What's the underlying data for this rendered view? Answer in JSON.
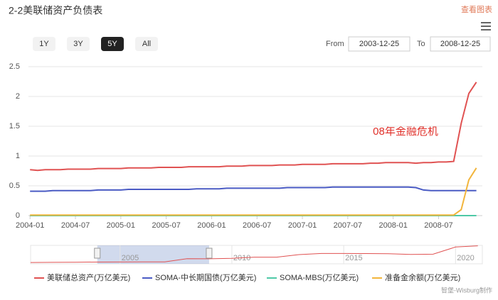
{
  "header": {
    "title": "2-2美联储资产负债表",
    "view_chart": "查看图表"
  },
  "range_selector": {
    "buttons": [
      "1Y",
      "3Y",
      "5Y",
      "All"
    ],
    "selected": "5Y",
    "from_label": "From",
    "from": "2003-12-25",
    "to_label": "To",
    "to": "2008-12-25"
  },
  "chart_data": {
    "type": "line",
    "x": [
      "2004-01",
      "2004-02",
      "2004-03",
      "2004-04",
      "2004-05",
      "2004-06",
      "2004-07",
      "2004-08",
      "2004-09",
      "2004-10",
      "2004-11",
      "2004-12",
      "2005-01",
      "2005-02",
      "2005-03",
      "2005-04",
      "2005-05",
      "2005-06",
      "2005-07",
      "2005-08",
      "2005-09",
      "2005-10",
      "2005-11",
      "2005-12",
      "2006-01",
      "2006-02",
      "2006-03",
      "2006-04",
      "2006-05",
      "2006-06",
      "2006-07",
      "2006-08",
      "2006-09",
      "2006-10",
      "2006-11",
      "2006-12",
      "2007-01",
      "2007-02",
      "2007-03",
      "2007-04",
      "2007-05",
      "2007-06",
      "2007-07",
      "2007-08",
      "2007-09",
      "2007-10",
      "2007-11",
      "2007-12",
      "2008-01",
      "2008-02",
      "2008-03",
      "2008-04",
      "2008-05",
      "2008-06",
      "2008-07",
      "2008-08",
      "2008-09",
      "2008-10",
      "2008-11",
      "2008-12"
    ],
    "xlim": [
      "2003-12-25",
      "2008-12-25"
    ],
    "xticks": [
      "2004-01",
      "2004-07",
      "2005-01",
      "2005-07",
      "2006-01",
      "2006-07",
      "2007-01",
      "2007-07",
      "2008-01",
      "2008-07"
    ],
    "ylim": [
      0,
      2.5
    ],
    "yticks": [
      0,
      0.5,
      1,
      1.5,
      2,
      2.5
    ],
    "grid": true,
    "annotation": "08年金融危机",
    "series": [
      {
        "name": "美联储总资产(万亿美元)",
        "color": "#e05252",
        "values": [
          0.77,
          0.76,
          0.77,
          0.77,
          0.77,
          0.78,
          0.78,
          0.78,
          0.78,
          0.79,
          0.79,
          0.79,
          0.79,
          0.8,
          0.8,
          0.8,
          0.8,
          0.81,
          0.81,
          0.81,
          0.81,
          0.82,
          0.82,
          0.82,
          0.82,
          0.82,
          0.83,
          0.83,
          0.83,
          0.84,
          0.84,
          0.84,
          0.84,
          0.85,
          0.85,
          0.85,
          0.86,
          0.86,
          0.86,
          0.86,
          0.87,
          0.87,
          0.87,
          0.87,
          0.87,
          0.88,
          0.88,
          0.89,
          0.89,
          0.89,
          0.89,
          0.88,
          0.89,
          0.89,
          0.9,
          0.9,
          0.91,
          1.55,
          2.05,
          2.24
        ]
      },
      {
        "name": "SOMA-中长期国债(万亿美元)",
        "color": "#4a5bc4",
        "values": [
          0.41,
          0.41,
          0.41,
          0.42,
          0.42,
          0.42,
          0.42,
          0.42,
          0.42,
          0.43,
          0.43,
          0.43,
          0.43,
          0.44,
          0.44,
          0.44,
          0.44,
          0.44,
          0.44,
          0.44,
          0.44,
          0.44,
          0.45,
          0.45,
          0.45,
          0.45,
          0.46,
          0.46,
          0.46,
          0.46,
          0.46,
          0.46,
          0.46,
          0.46,
          0.47,
          0.47,
          0.47,
          0.47,
          0.47,
          0.47,
          0.48,
          0.48,
          0.48,
          0.48,
          0.48,
          0.48,
          0.48,
          0.48,
          0.48,
          0.48,
          0.48,
          0.47,
          0.43,
          0.42,
          0.42,
          0.42,
          0.42,
          0.42,
          0.42,
          0.42
        ]
      },
      {
        "name": "SOMA-MBS(万亿美元)",
        "color": "#4ec9a6",
        "values": [
          0,
          0,
          0,
          0,
          0,
          0,
          0,
          0,
          0,
          0,
          0,
          0,
          0,
          0,
          0,
          0,
          0,
          0,
          0,
          0,
          0,
          0,
          0,
          0,
          0,
          0,
          0,
          0,
          0,
          0,
          0,
          0,
          0,
          0,
          0,
          0,
          0,
          0,
          0,
          0,
          0,
          0,
          0,
          0,
          0,
          0,
          0,
          0,
          0,
          0,
          0,
          0,
          0,
          0,
          0,
          0,
          0,
          0,
          0,
          0
        ]
      },
      {
        "name": "准备金余额(万亿美元)",
        "color": "#f2b53c",
        "values": [
          0.01,
          0.01,
          0.01,
          0.01,
          0.01,
          0.01,
          0.01,
          0.01,
          0.01,
          0.01,
          0.01,
          0.01,
          0.01,
          0.01,
          0.01,
          0.01,
          0.01,
          0.01,
          0.01,
          0.01,
          0.01,
          0.01,
          0.01,
          0.01,
          0.01,
          0.01,
          0.01,
          0.01,
          0.01,
          0.01,
          0.01,
          0.01,
          0.01,
          0.01,
          0.01,
          0.01,
          0.01,
          0.01,
          0.01,
          0.01,
          0.01,
          0.01,
          0.01,
          0.01,
          0.01,
          0.01,
          0.01,
          0.01,
          0.01,
          0.01,
          0.01,
          0.01,
          0.01,
          0.01,
          0.01,
          0.01,
          0.01,
          0.1,
          0.6,
          0.8
        ]
      }
    ]
  },
  "navigator": {
    "x": [
      2001,
      2002,
      2003,
      2004,
      2005,
      2006,
      2007,
      2008,
      2009,
      2010,
      2011,
      2012,
      2013,
      2014,
      2015,
      2016,
      2017,
      2018,
      2019,
      2020,
      2021
    ],
    "values": [
      0.6,
      0.65,
      0.72,
      0.77,
      0.8,
      0.83,
      0.86,
      2.24,
      2.2,
      2.4,
      2.9,
      2.9,
      4,
      4.5,
      4.5,
      4.45,
      4.4,
      4.1,
      4.2,
      7.3,
      7.8
    ],
    "xlim": [
      2001,
      2021.2
    ],
    "ylim": [
      0,
      8
    ],
    "xticks": [
      2005,
      2010,
      2015,
      2020
    ]
  },
  "footer": {
    "credit": "智堡-Wisburg制作"
  }
}
